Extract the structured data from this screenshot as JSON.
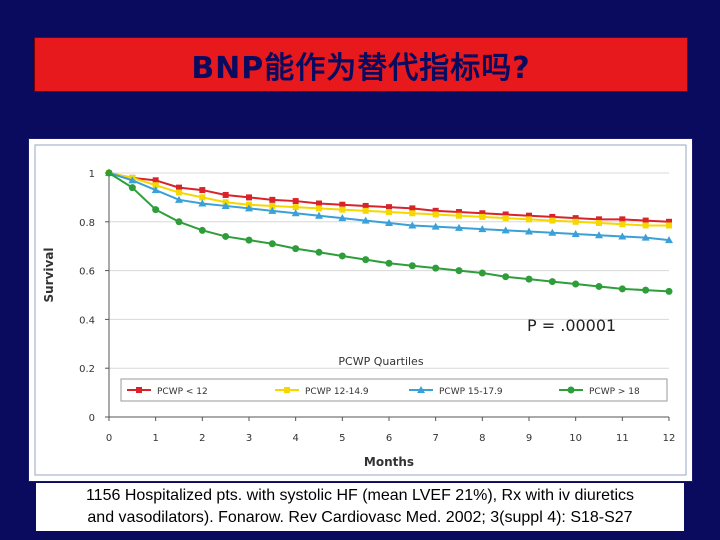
{
  "slide": {
    "title": "BNP能作为替代指标吗?",
    "caption_line1": "1156 Hospitalized pts. with systolic HF (mean LVEF 21%), Rx with iv diuretics",
    "caption_line2": "and vasodilators).  Fonarow. Rev Cardiovasc Med. 2002; 3(suppl 4): S18-S27",
    "colors": {
      "background": "#0a0a5e",
      "title_box": "#e8191c"
    }
  },
  "chart_data": {
    "type": "line",
    "title": "",
    "xlabel": "Months",
    "ylabel": "Survival",
    "xlim": [
      0,
      12
    ],
    "ylim": [
      0,
      1
    ],
    "xticks": [
      0,
      1,
      2,
      3,
      4,
      5,
      6,
      7,
      8,
      9,
      10,
      11,
      12
    ],
    "yticks": [
      {
        "v": 0,
        "label": "0"
      },
      {
        "v": 0.2,
        "label": "0.2"
      },
      {
        "v": 0.4,
        "label": "0.4"
      },
      {
        "v": 0.6,
        "label": "0.6"
      },
      {
        "v": 0.8,
        "label": "0.8"
      },
      {
        "v": 1,
        "label": "1"
      }
    ],
    "annotation": "P = .00001",
    "legend_title": "PCWP Quartiles",
    "legend_position": "bottom",
    "x": [
      0,
      0.5,
      1,
      1.5,
      2,
      2.5,
      3,
      3.5,
      4,
      4.5,
      5,
      5.5,
      6,
      6.5,
      7,
      7.5,
      8,
      8.5,
      9,
      9.5,
      10,
      10.5,
      11,
      11.5,
      12
    ],
    "series": [
      {
        "name": "PCWP < 12",
        "color": "#d8232a",
        "marker": "square",
        "values": [
          1,
          0.98,
          0.97,
          0.94,
          0.93,
          0.91,
          0.9,
          0.89,
          0.885,
          0.875,
          0.87,
          0.865,
          0.86,
          0.855,
          0.845,
          0.84,
          0.835,
          0.83,
          0.825,
          0.82,
          0.815,
          0.81,
          0.81,
          0.805,
          0.8
        ]
      },
      {
        "name": "PCWP 12-14.9",
        "color": "#f5d800",
        "marker": "square",
        "values": [
          1,
          0.98,
          0.95,
          0.92,
          0.9,
          0.88,
          0.87,
          0.865,
          0.86,
          0.855,
          0.85,
          0.845,
          0.84,
          0.835,
          0.83,
          0.825,
          0.82,
          0.815,
          0.81,
          0.805,
          0.8,
          0.795,
          0.79,
          0.785,
          0.785
        ]
      },
      {
        "name": "PCWP 15-17.9",
        "color": "#3aa0d8",
        "marker": "triangle",
        "values": [
          1,
          0.97,
          0.93,
          0.89,
          0.875,
          0.865,
          0.855,
          0.845,
          0.835,
          0.825,
          0.815,
          0.805,
          0.795,
          0.785,
          0.78,
          0.775,
          0.77,
          0.765,
          0.76,
          0.755,
          0.75,
          0.745,
          0.74,
          0.735,
          0.725
        ]
      },
      {
        "name": "PCWP > 18",
        "color": "#2e9e3a",
        "marker": "circle",
        "values": [
          1,
          0.94,
          0.85,
          0.8,
          0.765,
          0.74,
          0.725,
          0.71,
          0.69,
          0.675,
          0.66,
          0.645,
          0.63,
          0.62,
          0.61,
          0.6,
          0.59,
          0.575,
          0.565,
          0.555,
          0.545,
          0.535,
          0.525,
          0.52,
          0.515
        ]
      }
    ]
  }
}
